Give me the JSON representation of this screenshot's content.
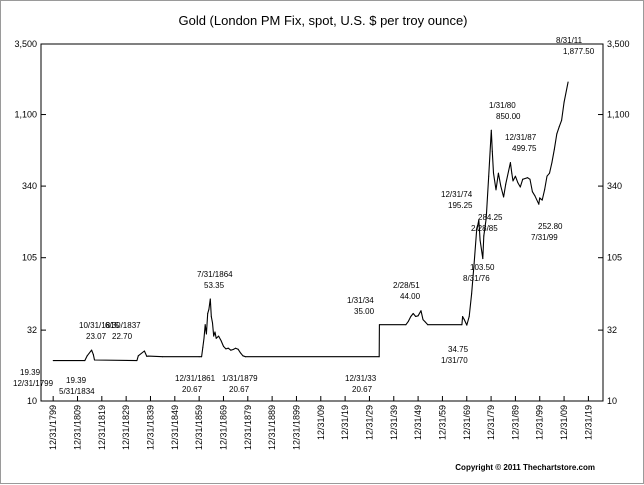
{
  "chart_data": {
    "type": "line",
    "title": "Gold (London PM Fix, spot, U.S. $ per troy ounce)",
    "copyright": "Copyright © 2011 Thechartstore.com",
    "y_scale": "log",
    "ylim": [
      10,
      3500
    ],
    "y_ticks": [
      {
        "value": 10,
        "label": "10"
      },
      {
        "value": 32,
        "label": "32"
      },
      {
        "value": 105,
        "label": "105"
      },
      {
        "value": 340,
        "label": "340"
      },
      {
        "value": 1100,
        "label": "1,100"
      },
      {
        "value": 3500,
        "label": "3,500"
      }
    ],
    "xlim": [
      1795,
      2026
    ],
    "x_ticks": [
      {
        "year": 1800,
        "label": "12/31/1799"
      },
      {
        "year": 1810,
        "label": "12/31/1809"
      },
      {
        "year": 1820,
        "label": "12/31/1819"
      },
      {
        "year": 1830,
        "label": "12/31/1829"
      },
      {
        "year": 1840,
        "label": "12/31/1839"
      },
      {
        "year": 1850,
        "label": "12/31/1849"
      },
      {
        "year": 1860,
        "label": "12/31/1859"
      },
      {
        "year": 1870,
        "label": "12/31/1869"
      },
      {
        "year": 1880,
        "label": "12/31/1879"
      },
      {
        "year": 1890,
        "label": "12/31/1889"
      },
      {
        "year": 1900,
        "label": "12/31/1899"
      },
      {
        "year": 1910,
        "label": "12/31/09"
      },
      {
        "year": 1920,
        "label": "12/31/19"
      },
      {
        "year": 1930,
        "label": "12/31/29"
      },
      {
        "year": 1940,
        "label": "12/31/39"
      },
      {
        "year": 1950,
        "label": "12/31/49"
      },
      {
        "year": 1960,
        "label": "12/31/59"
      },
      {
        "year": 1970,
        "label": "12/31/69"
      },
      {
        "year": 1980,
        "label": "12/31/79"
      },
      {
        "year": 1990,
        "label": "12/31/89"
      },
      {
        "year": 2000,
        "label": "12/31/99"
      },
      {
        "year": 2010,
        "label": "12/31/09"
      },
      {
        "year": 2020,
        "label": "12/31/19"
      }
    ],
    "series": [
      {
        "points": [
          [
            1800,
            19.39
          ],
          [
            1813,
            19.39
          ],
          [
            1814,
            21.0
          ],
          [
            1815.8,
            23.07
          ],
          [
            1816.5,
            21.5
          ],
          [
            1817,
            19.6
          ],
          [
            1834.4,
            19.39
          ],
          [
            1835,
            21.0
          ],
          [
            1837.5,
            22.7
          ],
          [
            1838.5,
            20.8
          ],
          [
            1839,
            20.9
          ],
          [
            1845,
            20.7
          ],
          [
            1860,
            20.67
          ],
          [
            1861,
            20.67
          ],
          [
            1861.5,
            24.0
          ],
          [
            1862,
            28.0
          ],
          [
            1862.5,
            35.0
          ],
          [
            1863,
            30.0
          ],
          [
            1863.5,
            42.0
          ],
          [
            1864,
            45.0
          ],
          [
            1864.6,
            53.35
          ],
          [
            1865,
            40.0
          ],
          [
            1865.5,
            36.0
          ],
          [
            1866,
            29.0
          ],
          [
            1866.5,
            31.0
          ],
          [
            1867,
            28.0
          ],
          [
            1868,
            29.0
          ],
          [
            1869,
            27.0
          ],
          [
            1870,
            24.5
          ],
          [
            1871,
            23.5
          ],
          [
            1872,
            23.8
          ],
          [
            1873,
            23.0
          ],
          [
            1874,
            23.3
          ],
          [
            1875,
            23.8
          ],
          [
            1876,
            23.4
          ],
          [
            1877,
            22.0
          ],
          [
            1878,
            21.0
          ],
          [
            1879,
            20.67
          ],
          [
            1934,
            20.67
          ],
          [
            1934.1,
            35.0
          ],
          [
            1945,
            35.0
          ],
          [
            1946,
            37.0
          ],
          [
            1947,
            40.0
          ],
          [
            1948,
            42.0
          ],
          [
            1949,
            40.0
          ],
          [
            1950,
            40.5
          ],
          [
            1951.2,
            44.0
          ],
          [
            1952,
            38.0
          ],
          [
            1953,
            36.5
          ],
          [
            1954,
            35.0
          ],
          [
            1968,
            35.0
          ],
          [
            1968.3,
            40.0
          ],
          [
            1969,
            38.0
          ],
          [
            1970,
            34.75
          ],
          [
            1971,
            40.0
          ],
          [
            1972,
            58.0
          ],
          [
            1973,
            95.0
          ],
          [
            1974,
            160.0
          ],
          [
            1974.95,
            195.25
          ],
          [
            1975.5,
            140.0
          ],
          [
            1976.6,
            103.5
          ],
          [
            1977,
            150.0
          ],
          [
            1978,
            200.0
          ],
          [
            1979,
            400.0
          ],
          [
            1980.1,
            850.0
          ],
          [
            1980.5,
            600.0
          ],
          [
            1981,
            420.0
          ],
          [
            1982,
            320.0
          ],
          [
            1983,
            420.0
          ],
          [
            1984,
            340.0
          ],
          [
            1985.15,
            284.25
          ],
          [
            1986,
            350.0
          ],
          [
            1987.95,
            499.75
          ],
          [
            1988.5,
            420.0
          ],
          [
            1989,
            370.0
          ],
          [
            1990,
            400.0
          ],
          [
            1991,
            360.0
          ],
          [
            1992,
            335.0
          ],
          [
            1993,
            380.0
          ],
          [
            1994,
            385.0
          ],
          [
            1995,
            390.0
          ],
          [
            1996,
            380.0
          ],
          [
            1997,
            310.0
          ],
          [
            1998,
            290.0
          ],
          [
            1999.6,
            252.8
          ],
          [
            2000,
            280.0
          ],
          [
            2001,
            270.0
          ],
          [
            2002,
            320.0
          ],
          [
            2003,
            400.0
          ],
          [
            2004,
            420.0
          ],
          [
            2005,
            500.0
          ],
          [
            2006,
            620.0
          ],
          [
            2007,
            800.0
          ],
          [
            2008,
            900.0
          ],
          [
            2009,
            1000.0
          ],
          [
            2010,
            1350.0
          ],
          [
            2011.66,
            1877.5
          ]
        ]
      }
    ],
    "annotations": [
      {
        "date": "12/31/1799",
        "value": "19.39"
      },
      {
        "date": "10/31/1815",
        "value": "23.07"
      },
      {
        "date": "5/31/1834",
        "value": "19.39"
      },
      {
        "date": "6/30/1837",
        "value": "22.70"
      },
      {
        "date": "12/31/1861",
        "value": "20.67"
      },
      {
        "date": "7/31/1864",
        "value": "53.35"
      },
      {
        "date": "1/31/1879",
        "value": "20.67"
      },
      {
        "date": "12/31/33",
        "value": "20.67"
      },
      {
        "date": "1/31/34",
        "value": "35.00"
      },
      {
        "date": "2/28/51",
        "value": "44.00"
      },
      {
        "date": "1/31/70",
        "value": "34.75"
      },
      {
        "date": "12/31/74",
        "value": "195.25"
      },
      {
        "date": "8/31/76",
        "value": "103.50"
      },
      {
        "date": "1/31/80",
        "value": "850.00"
      },
      {
        "date": "2/28/85",
        "value": "284.25"
      },
      {
        "date": "12/31/87",
        "value": "499.75"
      },
      {
        "date": "7/31/99",
        "value": "252.80"
      },
      {
        "date": "8/31/11",
        "value": "1,877.50"
      }
    ]
  }
}
